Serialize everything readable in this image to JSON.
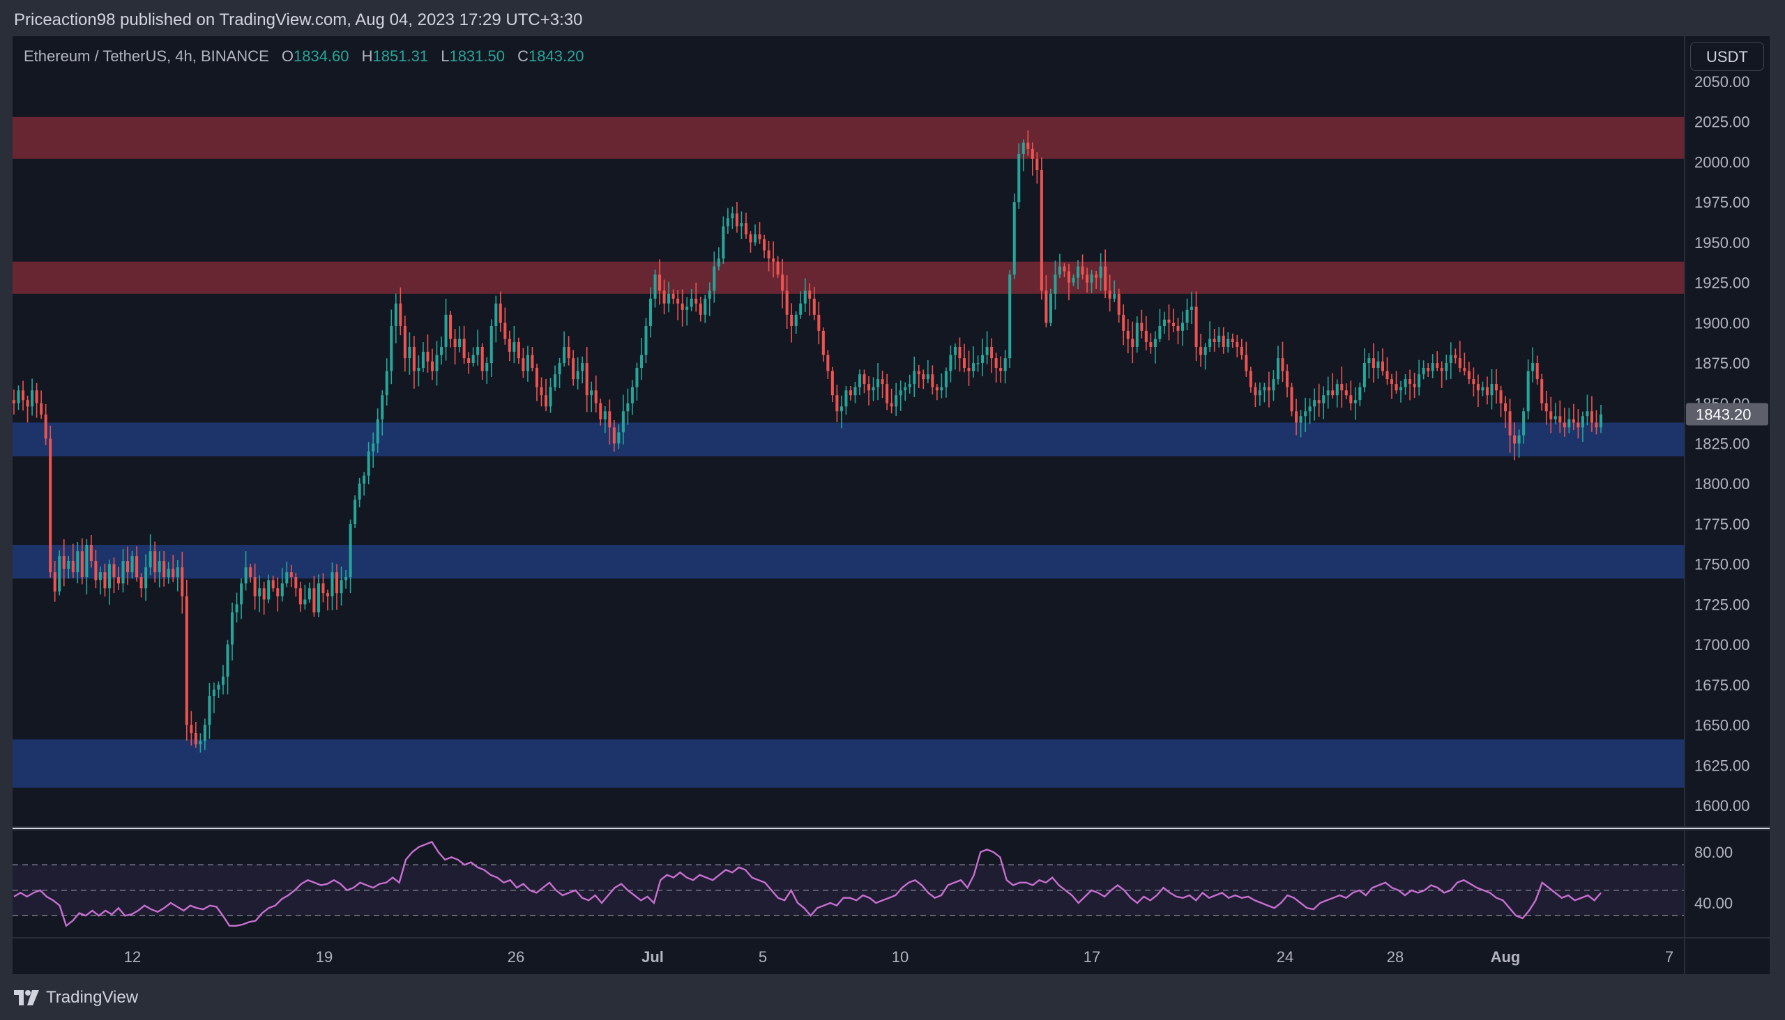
{
  "publisher": "Priceaction98 published on TradingView.com, Aug 04, 2023 17:29 UTC+3:30",
  "legend": {
    "symbol": "Ethereum / TetherUS, 4h, BINANCE",
    "o_label": "O",
    "o": "1834.60",
    "h_label": "H",
    "h": "1851.31",
    "l_label": "L",
    "l": "1831.50",
    "c_label": "C",
    "c": "1843.20"
  },
  "currency": "USDT",
  "brand": "TradingView",
  "colors": {
    "background": "#131722",
    "up": "#26a69a",
    "down": "#ef5350",
    "resistance_zone": "#7a2a36",
    "support_zone": "#1e3a7a",
    "rsi_line": "#c86fd0",
    "grid": "#1e222d",
    "axis_text": "#b2b5be"
  },
  "chart_data": [
    {
      "type": "candlestick",
      "ylim": [
        1590,
        2060
      ],
      "y_ticks": [
        "2050.00",
        "2025.00",
        "2000.00",
        "1975.00",
        "1950.00",
        "1925.00",
        "1900.00",
        "1875.00",
        "1850.00",
        "1825.00",
        "1800.00",
        "1775.00",
        "1750.00",
        "1725.00",
        "1700.00",
        "1675.00",
        "1650.00",
        "1625.00",
        "1600.00"
      ],
      "x_ticks": [
        "12",
        "19",
        "26",
        "Jul",
        "5",
        "10",
        "17",
        "24",
        "28",
        "Aug",
        "7"
      ],
      "last_price_label": "1843.20",
      "zones": [
        {
          "kind": "resistance",
          "from": 2002,
          "to": 2028
        },
        {
          "kind": "resistance",
          "from": 1918,
          "to": 1938
        },
        {
          "kind": "support",
          "from": 1817,
          "to": 1838
        },
        {
          "kind": "support",
          "from": 1741,
          "to": 1762
        },
        {
          "kind": "support",
          "from": 1611,
          "to": 1641
        }
      ],
      "price_path": [
        1850,
        1858,
        1852,
        1848,
        1858,
        1850,
        1843,
        1828,
        1745,
        1733,
        1755,
        1747,
        1752,
        1745,
        1758,
        1742,
        1762,
        1752,
        1740,
        1745,
        1735,
        1750,
        1742,
        1738,
        1752,
        1745,
        1755,
        1742,
        1735,
        1748,
        1758,
        1745,
        1752,
        1742,
        1747,
        1742,
        1748,
        1730,
        1650,
        1645,
        1638,
        1640,
        1650,
        1668,
        1672,
        1675,
        1680,
        1700,
        1720,
        1725,
        1738,
        1748,
        1742,
        1730,
        1735,
        1728,
        1740,
        1735,
        1730,
        1738,
        1745,
        1742,
        1735,
        1725,
        1728,
        1735,
        1720,
        1738,
        1732,
        1730,
        1745,
        1732,
        1740,
        1742,
        1775,
        1790,
        1800,
        1805,
        1820,
        1825,
        1840,
        1855,
        1870,
        1898,
        1912,
        1898,
        1878,
        1885,
        1870,
        1872,
        1882,
        1876,
        1870,
        1880,
        1885,
        1905,
        1890,
        1885,
        1890,
        1878,
        1875,
        1880,
        1885,
        1870,
        1875,
        1898,
        1912,
        1900,
        1890,
        1882,
        1888,
        1878,
        1870,
        1880,
        1872,
        1860,
        1855,
        1848,
        1860,
        1868,
        1875,
        1885,
        1878,
        1865,
        1870,
        1875,
        1855,
        1858,
        1850,
        1840,
        1845,
        1835,
        1825,
        1832,
        1845,
        1850,
        1860,
        1872,
        1880,
        1898,
        1915,
        1930,
        1920,
        1912,
        1918,
        1915,
        1912,
        1908,
        1910,
        1915,
        1912,
        1905,
        1915,
        1920,
        1935,
        1940,
        1960,
        1965,
        1968,
        1960,
        1962,
        1955,
        1950,
        1955,
        1952,
        1945,
        1940,
        1938,
        1930,
        1920,
        1905,
        1898,
        1905,
        1912,
        1920,
        1915,
        1905,
        1895,
        1880,
        1870,
        1855,
        1845,
        1848,
        1858,
        1855,
        1860,
        1868,
        1862,
        1858,
        1860,
        1865,
        1862,
        1850,
        1848,
        1855,
        1858,
        1860,
        1862,
        1870,
        1868,
        1865,
        1868,
        1860,
        1858,
        1860,
        1870,
        1880,
        1885,
        1878,
        1872,
        1870,
        1875,
        1875,
        1880,
        1885,
        1878,
        1872,
        1870,
        1878,
        1930,
        1975,
        2005,
        2012,
        2008,
        2002,
        1995,
        1920,
        1900,
        1918,
        1930,
        1935,
        1932,
        1925,
        1928,
        1935,
        1930,
        1925,
        1930,
        1928,
        1935,
        1920,
        1915,
        1918,
        1905,
        1895,
        1890,
        1885,
        1900,
        1895,
        1888,
        1885,
        1890,
        1898,
        1902,
        1900,
        1898,
        1895,
        1900,
        1908,
        1910,
        1885,
        1880,
        1885,
        1890,
        1888,
        1892,
        1885,
        1890,
        1888,
        1885,
        1880,
        1870,
        1860,
        1855,
        1858,
        1860,
        1858,
        1865,
        1878,
        1870,
        1860,
        1845,
        1838,
        1842,
        1845,
        1848,
        1852,
        1850,
        1855,
        1858,
        1855,
        1862,
        1858,
        1855,
        1850,
        1852,
        1860,
        1875,
        1878,
        1872,
        1876,
        1870,
        1865,
        1862,
        1858,
        1860,
        1865,
        1862,
        1860,
        1868,
        1872,
        1870,
        1875,
        1872,
        1870,
        1875,
        1880,
        1878,
        1872,
        1870,
        1865,
        1862,
        1858,
        1860,
        1855,
        1862,
        1858,
        1850,
        1845,
        1830,
        1825,
        1830,
        1845,
        1870,
        1875,
        1865,
        1850,
        1845,
        1840,
        1842,
        1838,
        1835,
        1840,
        1838,
        1835,
        1842,
        1845,
        1838,
        1835,
        1843
      ]
    },
    {
      "type": "line",
      "series": [
        {
          "name": "",
          "values_from": "rsi_path"
        }
      ],
      "ylim": [
        18,
        100
      ],
      "y_ticks": [
        "80.00",
        "40.00"
      ],
      "bands": [
        70,
        50,
        30
      ],
      "rsi_path": [
        45,
        48,
        45,
        48,
        50,
        45,
        42,
        38,
        22,
        26,
        32,
        30,
        34,
        30,
        34,
        31,
        36,
        30,
        31,
        34,
        38,
        35,
        33,
        36,
        40,
        37,
        34,
        38,
        36,
        35,
        38,
        37,
        30,
        22,
        22,
        23,
        25,
        26,
        32,
        36,
        38,
        43,
        46,
        50,
        55,
        58,
        56,
        54,
        55,
        58,
        55,
        50,
        52,
        56,
        54,
        52,
        55,
        56,
        60,
        56,
        74,
        80,
        84,
        86,
        88,
        80,
        74,
        76,
        74,
        70,
        72,
        68,
        66,
        62,
        60,
        56,
        58,
        52,
        55,
        50,
        48,
        52,
        56,
        50,
        46,
        48,
        50,
        44,
        42,
        46,
        40,
        46,
        52,
        55,
        50,
        46,
        42,
        45,
        40,
        58,
        62,
        60,
        64,
        60,
        58,
        62,
        60,
        58,
        62,
        66,
        64,
        68,
        66,
        60,
        58,
        56,
        50,
        44,
        42,
        50,
        40,
        36,
        30,
        36,
        38,
        40,
        38,
        44,
        44,
        42,
        46,
        44,
        40,
        42,
        44,
        46,
        52,
        56,
        58,
        54,
        48,
        44,
        46,
        54,
        56,
        58,
        52,
        62,
        80,
        82,
        80,
        76,
        58,
        54,
        56,
        56,
        54,
        58,
        56,
        60,
        54,
        50,
        46,
        40,
        45,
        50,
        48,
        45,
        50,
        54,
        50,
        44,
        40,
        45,
        42,
        46,
        52,
        48,
        45,
        44,
        46,
        42,
        48,
        44,
        46,
        48,
        44,
        46,
        44,
        45,
        42,
        40,
        38,
        36,
        40,
        46,
        44,
        40,
        36,
        35,
        40,
        42,
        44,
        46,
        44,
        48,
        50,
        46,
        52,
        54,
        56,
        52,
        50,
        46,
        50,
        48,
        50,
        54,
        52,
        48,
        50,
        56,
        58,
        55,
        52,
        50,
        48,
        44,
        42,
        36,
        30,
        28,
        34,
        42,
        56,
        52,
        48,
        44,
        46,
        42,
        44,
        46,
        42,
        48
      ]
    }
  ]
}
